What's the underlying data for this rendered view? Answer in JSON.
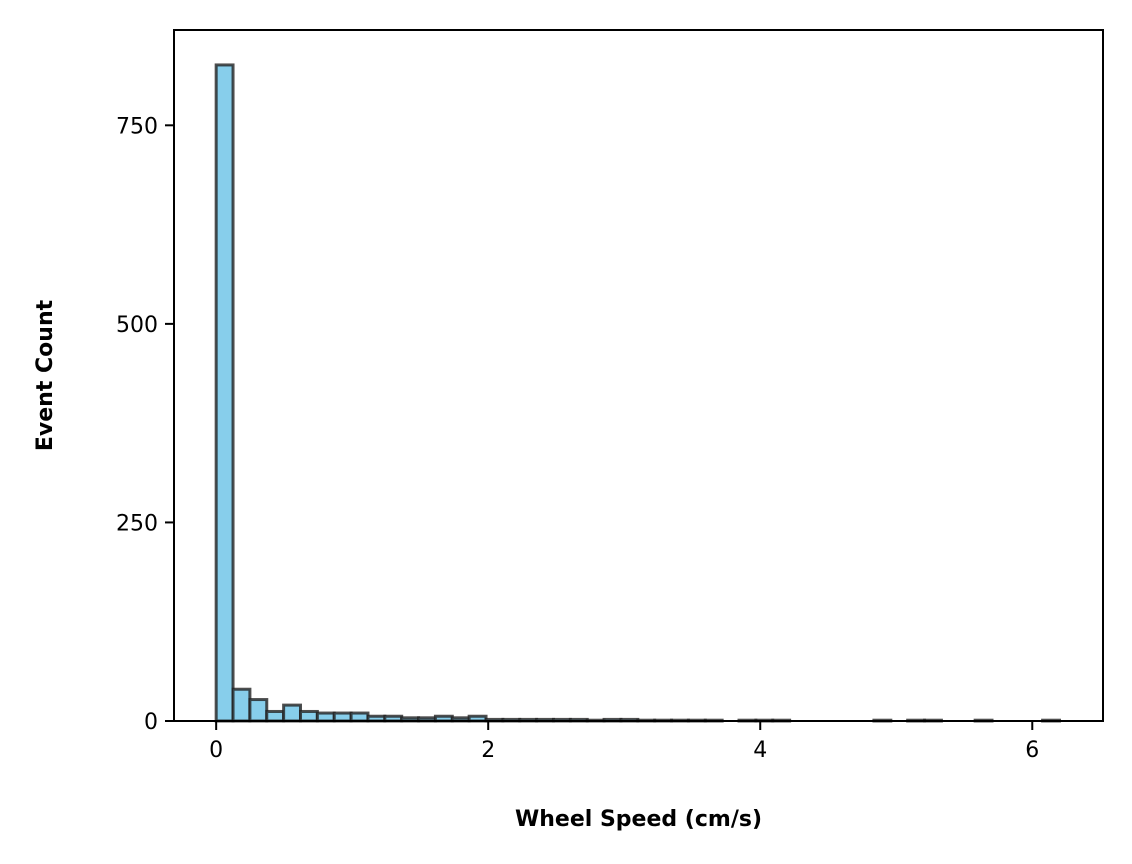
{
  "chart_data": {
    "type": "bar",
    "title": "",
    "xlabel": "Wheel Speed (cm/s)",
    "ylabel": "Event Count",
    "xlim": [
      -0.31,
      6.52
    ],
    "ylim": [
      0,
      870
    ],
    "x_ticks": [
      0,
      2,
      4,
      6
    ],
    "y_ticks": [
      0,
      250,
      500,
      750
    ],
    "bin_width": 0.124,
    "bin_start": 0,
    "counts": [
      826,
      40,
      27,
      12,
      20,
      12,
      10,
      10,
      10,
      6,
      6,
      4,
      4,
      6,
      4,
      6,
      2,
      2,
      2,
      2,
      2,
      2,
      1,
      2,
      2,
      1,
      1,
      1,
      1,
      1,
      0,
      1,
      1,
      1,
      0,
      0,
      0,
      0,
      0,
      1,
      0,
      1,
      1,
      0,
      0,
      1,
      0,
      0,
      0,
      1
    ],
    "bar_color": "#87CEEB",
    "edge_color": "#222222",
    "grid": false,
    "legend": "none"
  }
}
